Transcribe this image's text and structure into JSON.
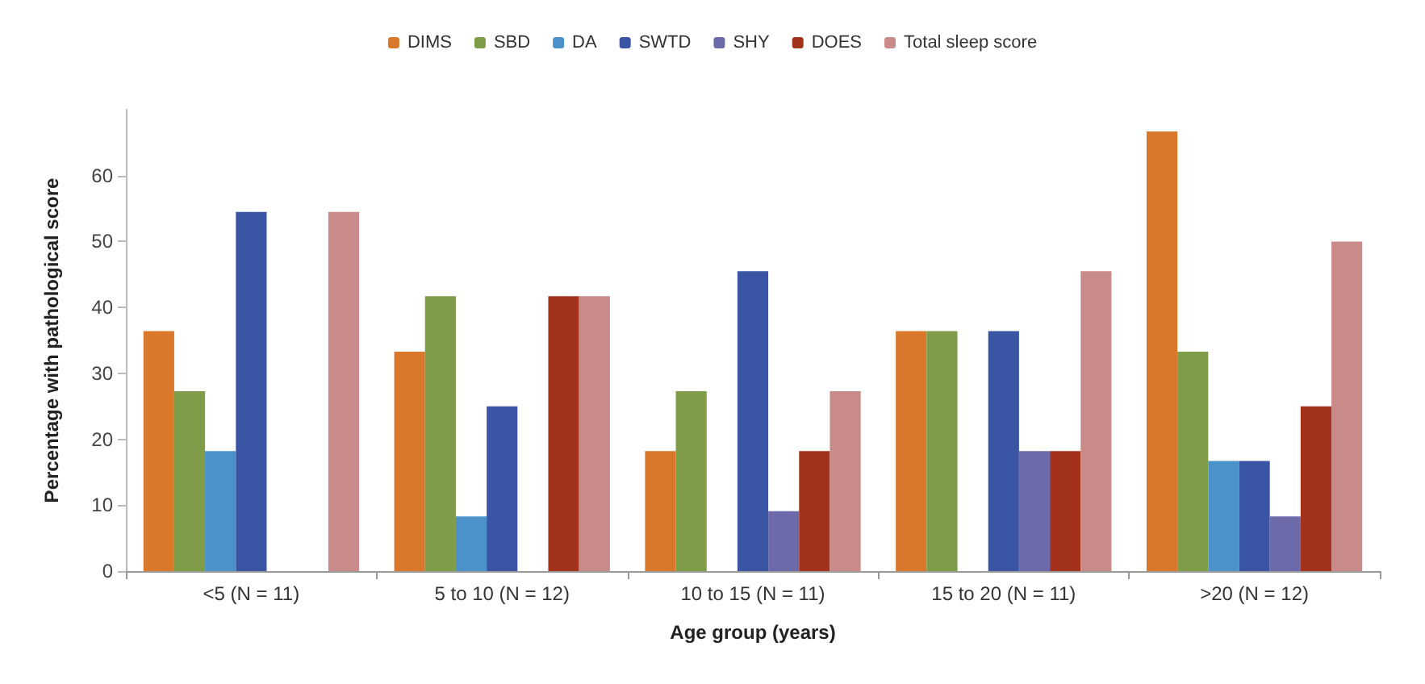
{
  "chart_data": {
    "type": "bar",
    "xlabel": "Age group (years)",
    "ylabel": "Percentage with pathological score",
    "categories": [
      "<5 (N = 11)",
      "5 to 10 (N = 12)",
      "10 to 15 (N = 11)",
      "15 to 20 (N = 11)",
      ">20 (N = 12)"
    ],
    "series": [
      {
        "name": "DIMS",
        "color": "#d9782a",
        "values": [
          36.4,
          33.3,
          18.2,
          36.4,
          66.7
        ]
      },
      {
        "name": "SBD",
        "color": "#7f9c48",
        "values": [
          27.3,
          41.7,
          27.3,
          36.4,
          33.3
        ]
      },
      {
        "name": "DA",
        "color": "#4a92c9",
        "values": [
          18.2,
          8.3,
          0,
          0,
          16.7
        ]
      },
      {
        "name": "SWTD",
        "color": "#3a55a4",
        "values": [
          54.5,
          25,
          45.5,
          36.4,
          16.7
        ]
      },
      {
        "name": "SHY",
        "color": "#6c6aa8",
        "values": [
          0,
          0,
          9.1,
          18.2,
          8.3
        ]
      },
      {
        "name": "DOES",
        "color": "#a3321c",
        "values": [
          0,
          41.7,
          18.2,
          18.2,
          25
        ]
      },
      {
        "name": "Total sleep score",
        "color": "#c98a8a",
        "values": [
          54.5,
          41.7,
          27.3,
          45.5,
          50
        ]
      }
    ],
    "ylim": [
      0,
      70
    ],
    "yticks": [
      0,
      10,
      20,
      30,
      40,
      50,
      60
    ],
    "grid": false,
    "legend": "top"
  }
}
